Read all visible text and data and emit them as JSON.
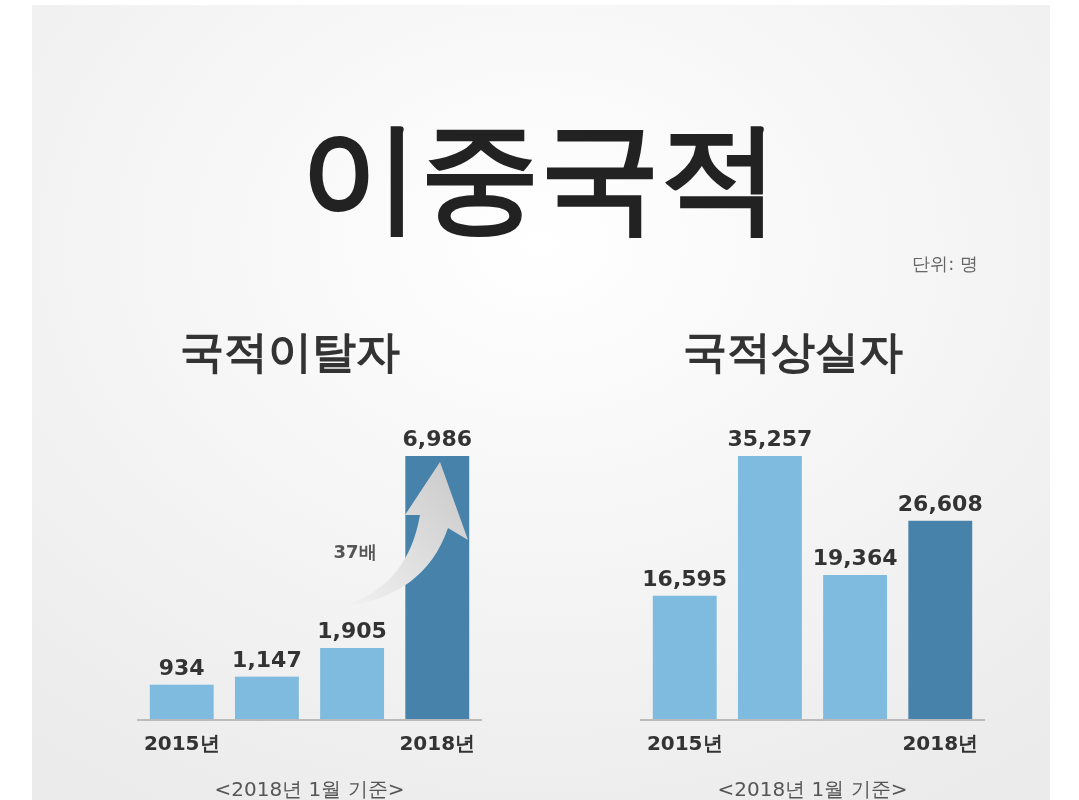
{
  "chart_data": [
    {
      "type": "bar",
      "title": "이중국적",
      "subtitle": "국적이탈자",
      "categories": [
        "2015년",
        null,
        null,
        "2018년"
      ],
      "values": [
        934,
        1147,
        1905,
        6986
      ],
      "colors": [
        "#7fbadf",
        "#7fbadf",
        "#7fbadf",
        "#4682a9"
      ],
      "value_labels": [
        "934",
        "1,147",
        "1,905",
        "6,986"
      ],
      "annotations": [
        "37배",
        "<2018년 1월 기준>"
      ]
    },
    {
      "type": "bar",
      "subtitle": "국적상실자",
      "categories": [
        "2015년",
        null,
        null,
        "2018년"
      ],
      "values": [
        16595,
        35257,
        19364,
        26608
      ],
      "colors": [
        "#7fbadf",
        "#7fbadf",
        "#7fbadf",
        "#4682a9"
      ],
      "value_labels": [
        "16,595",
        "35,257",
        "19,364",
        "26,608"
      ],
      "annotations": [
        "단위: 명",
        "<2018년 1월 기준>"
      ]
    }
  ]
}
